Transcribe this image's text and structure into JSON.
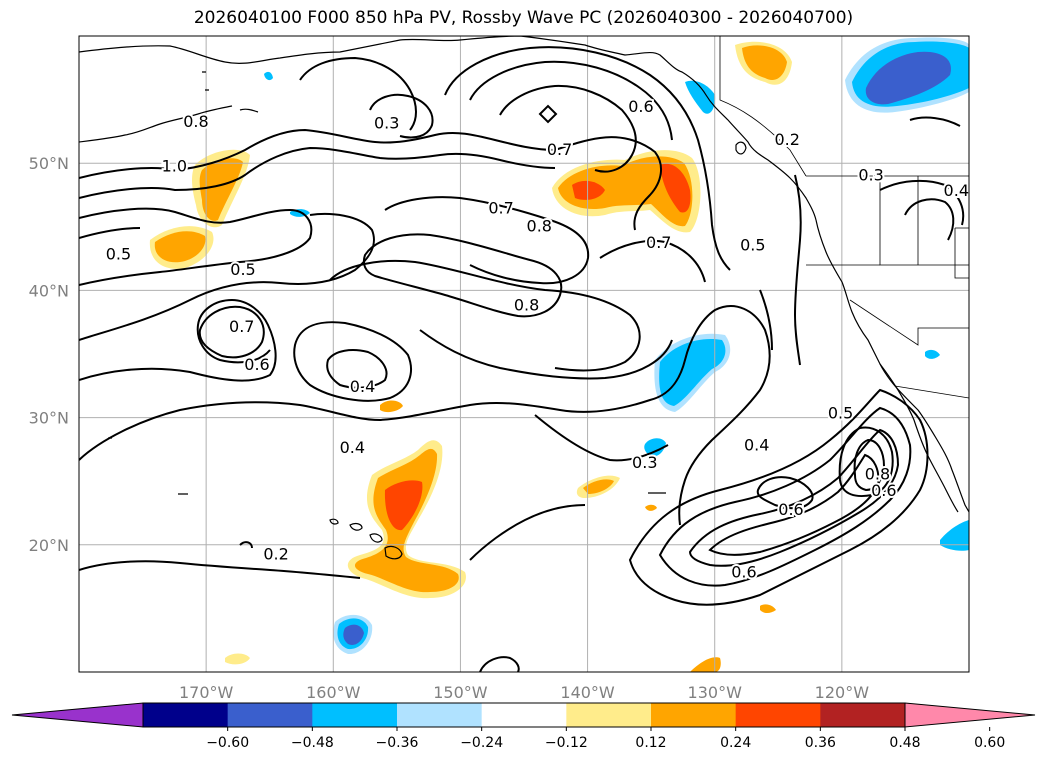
{
  "title": "2026040100 F000 850 hPa PV, Rossby Wave PC (2026040300 - 2026040700)",
  "map": {
    "extent": {
      "lon_min": -180,
      "lon_max": -110,
      "lat_min": 10,
      "lat_max": 60
    },
    "lat_ticks": [
      {
        "value": 50,
        "label": "50°N"
      },
      {
        "value": 40,
        "label": "40°N"
      },
      {
        "value": 30,
        "label": "30°N"
      },
      {
        "value": 20,
        "label": "20°N"
      }
    ],
    "lon_ticks": [
      {
        "value": -170,
        "label": "170°W"
      },
      {
        "value": -160,
        "label": "160°W"
      },
      {
        "value": -150,
        "label": "150°W"
      },
      {
        "value": -140,
        "label": "140°W"
      },
      {
        "value": -130,
        "label": "130°W"
      },
      {
        "value": -120,
        "label": "120°W"
      }
    ],
    "contour_labels": [
      {
        "text": "0.8",
        "lon": -170.8,
        "lat": 53.3
      },
      {
        "text": "1.0",
        "lon": -172.5,
        "lat": 49.8
      },
      {
        "text": "0.3",
        "lon": -155.8,
        "lat": 53.2
      },
      {
        "text": "0.7",
        "lon": -142.2,
        "lat": 51.1
      },
      {
        "text": "0.6",
        "lon": -135.8,
        "lat": 54.5
      },
      {
        "text": "0.7",
        "lon": -146.8,
        "lat": 46.5
      },
      {
        "text": "0.8",
        "lon": -143.8,
        "lat": 45.1
      },
      {
        "text": "0.7",
        "lon": -134.4,
        "lat": 43.8
      },
      {
        "text": "0.5",
        "lon": -127.0,
        "lat": 43.6
      },
      {
        "text": "0.2",
        "lon": -124.3,
        "lat": 51.9
      },
      {
        "text": "0.3",
        "lon": -117.7,
        "lat": 49.1
      },
      {
        "text": "0.4",
        "lon": -111.0,
        "lat": 47.9
      },
      {
        "text": "0.5",
        "lon": -176.9,
        "lat": 42.9
      },
      {
        "text": "0.5",
        "lon": -167.1,
        "lat": 41.7
      },
      {
        "text": "0.8",
        "lon": -144.8,
        "lat": 38.9
      },
      {
        "text": "0.7",
        "lon": -167.2,
        "lat": 37.2
      },
      {
        "text": "0.6",
        "lon": -166.0,
        "lat": 34.2
      },
      {
        "text": "0.4",
        "lon": -157.7,
        "lat": 32.5
      },
      {
        "text": "0.5",
        "lon": -120.1,
        "lat": 30.4
      },
      {
        "text": "0.4",
        "lon": -126.7,
        "lat": 27.9
      },
      {
        "text": "0.4",
        "lon": -158.5,
        "lat": 27.7
      },
      {
        "text": "0.3",
        "lon": -135.5,
        "lat": 26.5
      },
      {
        "text": "0.8",
        "lon": -117.2,
        "lat": 25.6
      },
      {
        "text": "0.6",
        "lon": -116.7,
        "lat": 24.3
      },
      {
        "text": "0.6",
        "lon": -124.0,
        "lat": 22.8
      },
      {
        "text": "0.2",
        "lon": -164.5,
        "lat": 19.3
      },
      {
        "text": "0.6",
        "lon": -127.7,
        "lat": 17.9
      }
    ]
  },
  "colorbar": {
    "levels": [
      "−0.60",
      "−0.48",
      "−0.36",
      "−0.24",
      "−0.12",
      "0.12",
      "0.24",
      "0.36",
      "0.48",
      "0.60"
    ],
    "colors": [
      "#9932cc",
      "#00008b",
      "#3a5fcd",
      "#00bfff",
      "#b0e2ff",
      "#ffffff",
      "#ffec8b",
      "#ffa500",
      "#ff4500",
      "#b22222",
      "#ff88aa"
    ]
  },
  "colors": {
    "grid": "#b0b0b0",
    "tick_text": "#808080"
  }
}
